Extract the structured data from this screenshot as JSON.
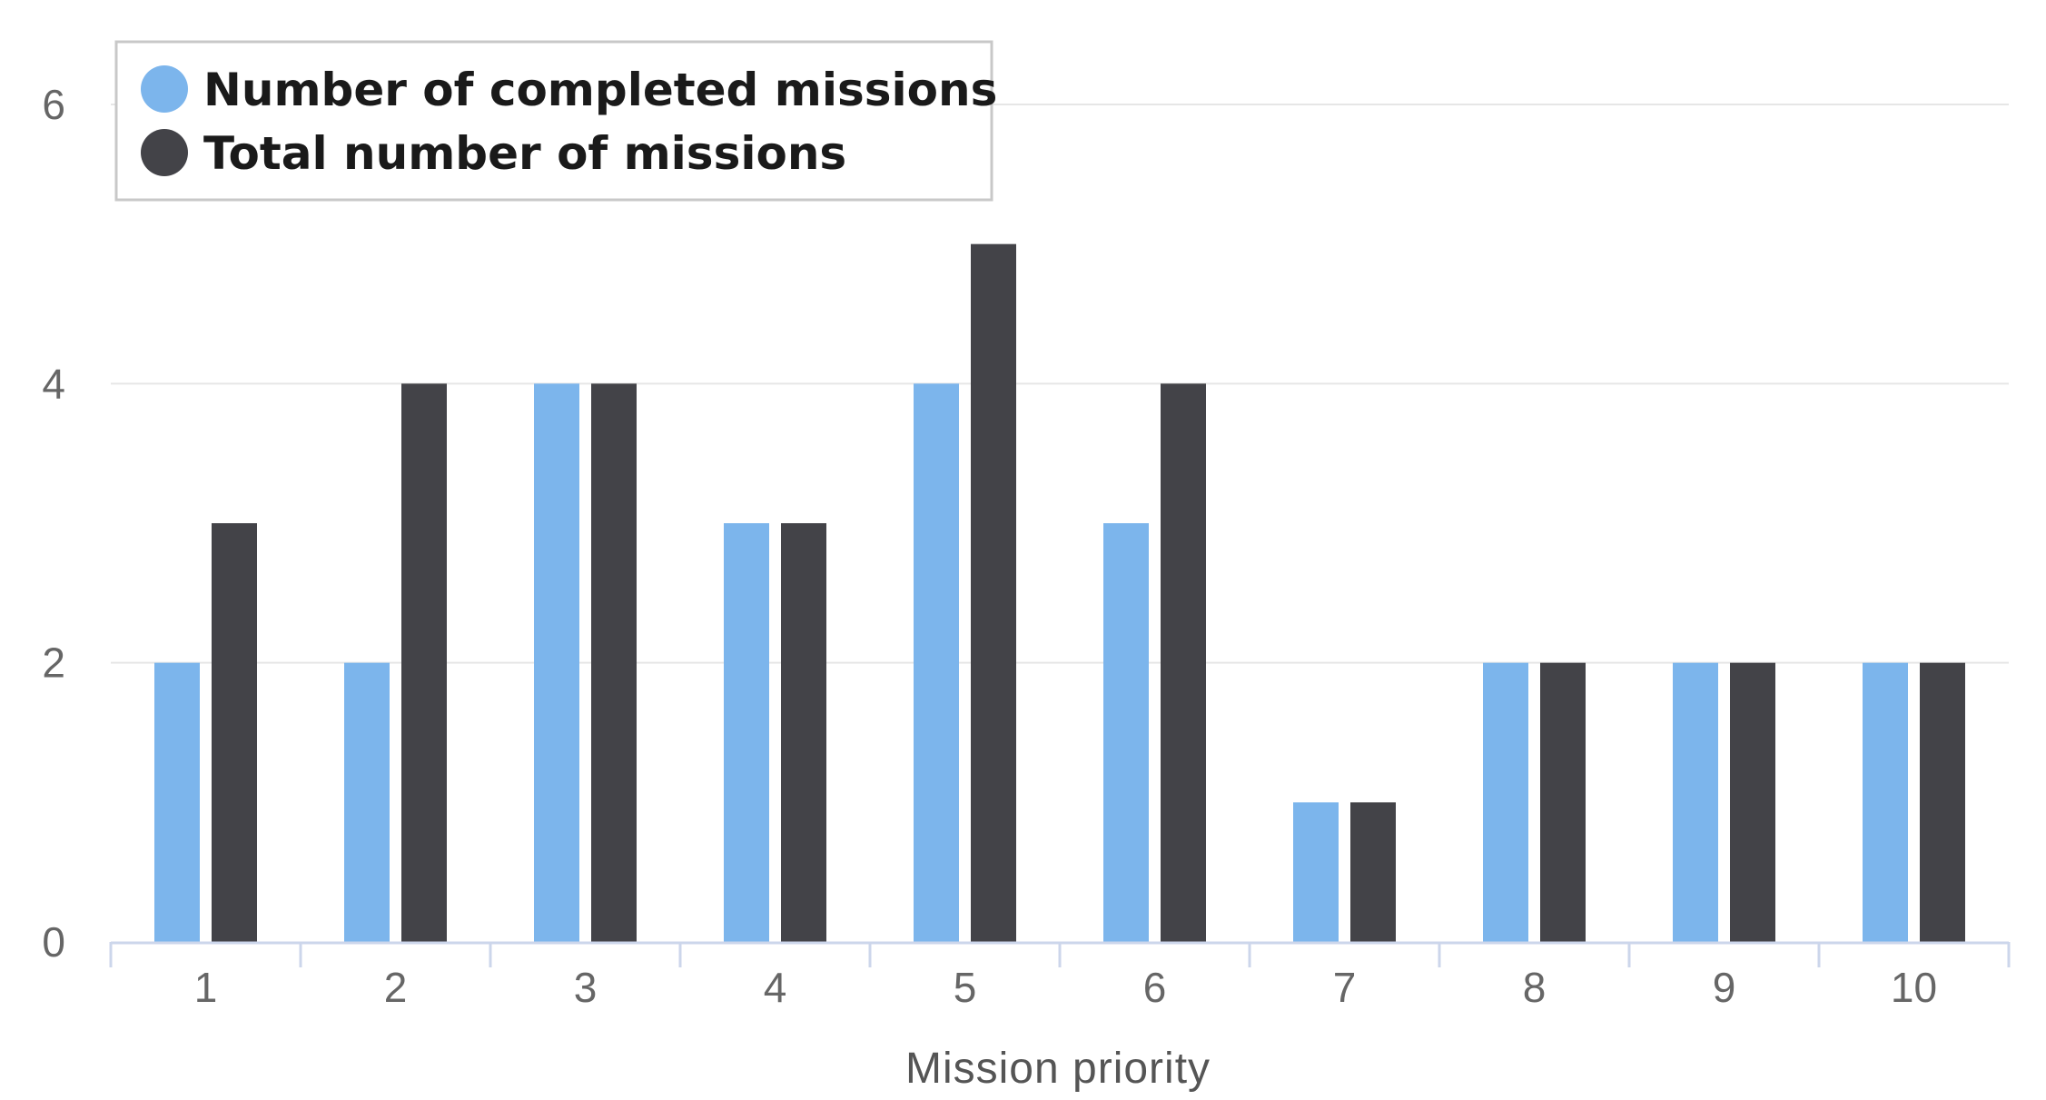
{
  "chart_data": {
    "type": "bar",
    "categories": [
      "1",
      "2",
      "3",
      "4",
      "5",
      "6",
      "7",
      "8",
      "9",
      "10"
    ],
    "series": [
      {
        "name": "Number of completed missions",
        "color": "#7cb5ec",
        "values": [
          2,
          2,
          4,
          3,
          4,
          3,
          1,
          2,
          2,
          2
        ]
      },
      {
        "name": "Total number of missions",
        "color": "#434348",
        "values": [
          3,
          4,
          4,
          3,
          5,
          4,
          1,
          2,
          2,
          2
        ]
      }
    ],
    "xlabel": "Mission priority",
    "ylabel": "",
    "ylim": [
      0,
      6
    ],
    "yticks": [
      "0",
      "2",
      "4",
      "6"
    ],
    "grid": true,
    "legend_position": "top-left"
  }
}
